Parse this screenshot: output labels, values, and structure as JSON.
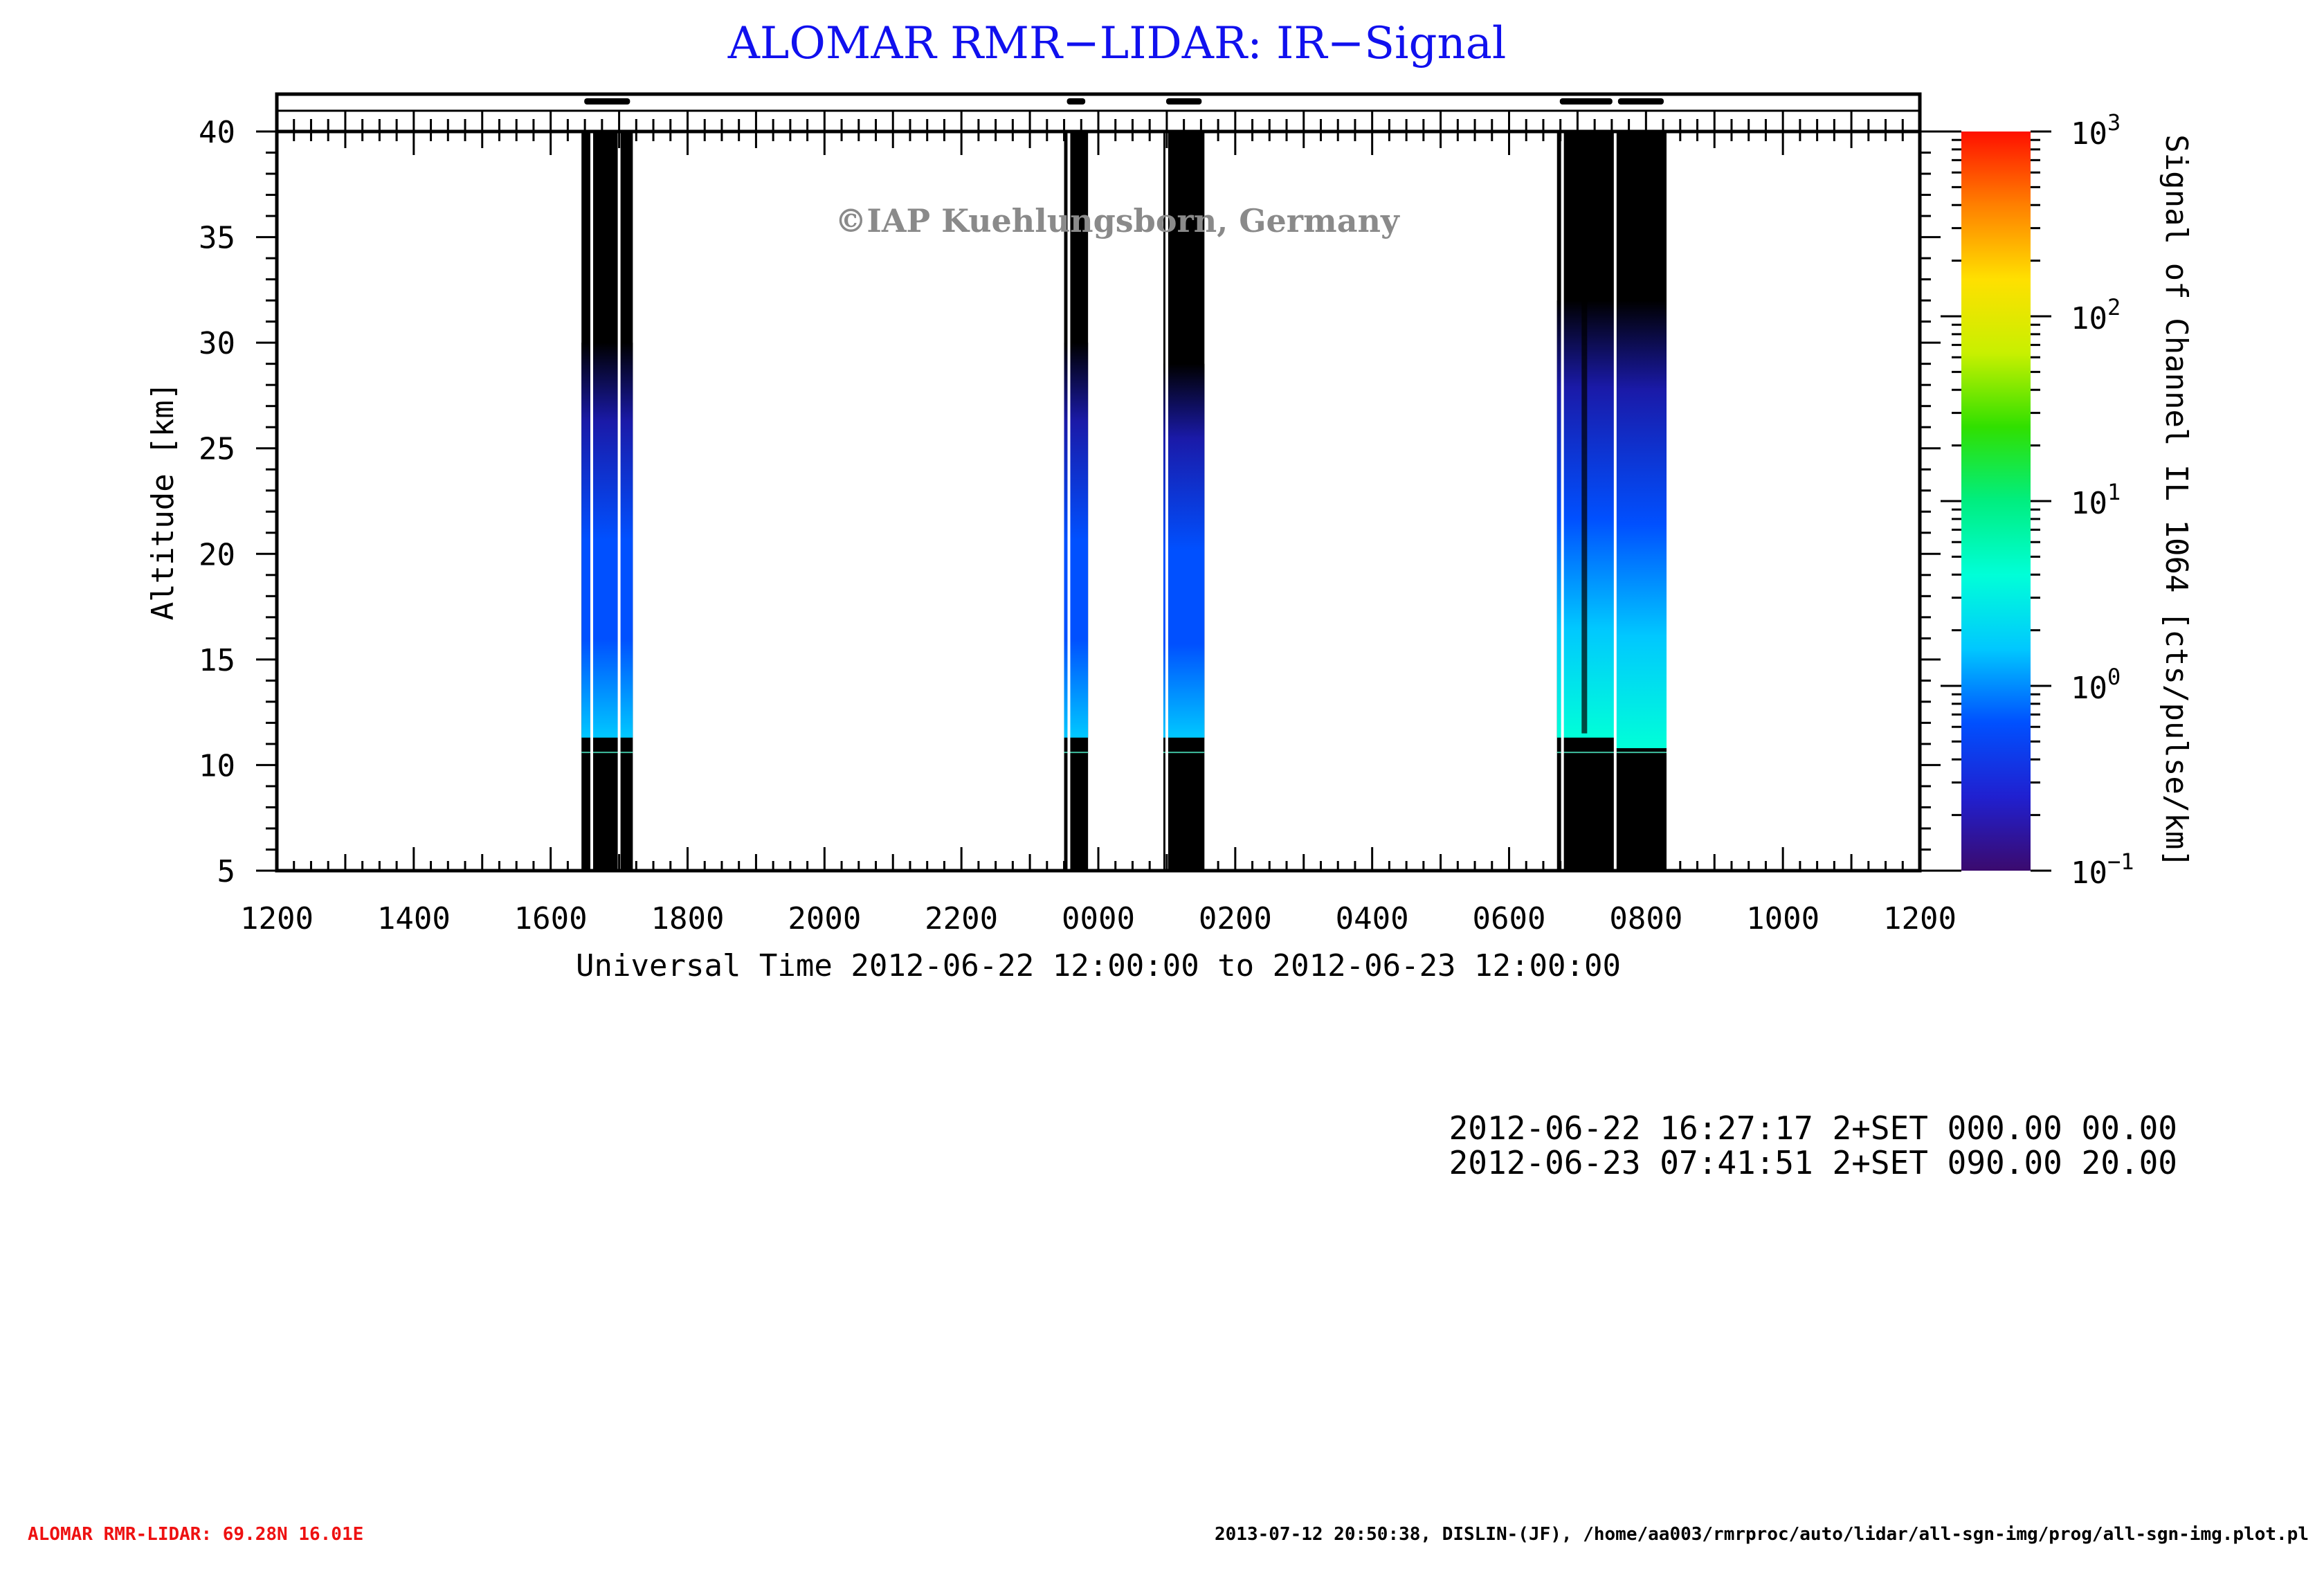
{
  "title": "ALOMAR RMR−LIDAR: IR−Signal",
  "copyright": "©IAP Kuehlungsborn, Germany",
  "colors": {
    "title": "#1010ee",
    "copyright": "#8a8a8a",
    "footer_left": "#ee1111",
    "axis": "#000000",
    "background": "#ffffff"
  },
  "chart_data": {
    "type": "heatmap",
    "title": "ALOMAR RMR−LIDAR: IR−Signal",
    "xlabel": "Universal Time 2012-06-22 12:00:00 to 2012-06-23 12:00:00",
    "ylabel": "Altitude [km]",
    "x_unit": "hours since 2012-06-22 12:00 UT",
    "xlim": [
      0,
      24
    ],
    "ylim": [
      5,
      40
    ],
    "x_ticks": [
      0,
      2,
      4,
      6,
      8,
      10,
      12,
      14,
      16,
      18,
      20,
      22,
      24
    ],
    "x_tick_labels": [
      "1200",
      "1400",
      "1600",
      "1800",
      "2000",
      "2200",
      "0000",
      "0200",
      "0400",
      "0600",
      "0800",
      "1000",
      "1200"
    ],
    "y_ticks": [
      5,
      10,
      15,
      20,
      25,
      30,
      35,
      40
    ],
    "y_tick_labels": [
      "5",
      "10",
      "15",
      "20",
      "25",
      "30",
      "35",
      "40"
    ],
    "colorbar": {
      "label": "Signal of Channel IL 1064 [cts/pulse/km]",
      "scale": "log",
      "range": [
        0.1,
        1000
      ],
      "tick_values": [
        0.1,
        1,
        10,
        100,
        1000
      ],
      "tick_bases": [
        "10",
        "10",
        "10",
        "10",
        "10"
      ],
      "tick_exponents": [
        "−1",
        "0",
        "1",
        "2",
        "3"
      ]
    },
    "measurement_periods": [
      {
        "start": 4.45,
        "end": 5.2,
        "signal_base_km": 11.3,
        "signal_top_km": 30,
        "peak_signal": 2
      },
      {
        "start": 11.5,
        "end": 11.85,
        "signal_base_km": 11.3,
        "signal_top_km": 30,
        "peak_signal": 2
      },
      {
        "start": 12.95,
        "end": 13.55,
        "signal_base_km": 11.3,
        "signal_top_km": 29,
        "peak_signal": 2
      },
      {
        "start": 18.7,
        "end": 19.55,
        "signal_base_km": 11.3,
        "signal_top_km": 32,
        "peak_signal": 4
      },
      {
        "start": 19.55,
        "end": 20.3,
        "signal_base_km": 10.8,
        "signal_top_km": 32,
        "peak_signal": 4
      }
    ],
    "gaps": [
      {
        "at": 4.6
      },
      {
        "at": 5.0
      },
      {
        "at": 11.57
      },
      {
        "at": 13.0
      },
      {
        "at": 18.78
      },
      {
        "at": 19.55
      }
    ],
    "tropopause_line_km": 10.6,
    "interruption_km_markers": [
      {
        "start": 18.95,
        "end": 19.25,
        "alt_top": 40,
        "alt_bottom": 11.5
      }
    ]
  },
  "info_lines": [
    "2012-06-22 16:27:17 2+SET 000.00 00.00",
    "2012-06-23 07:41:51 2+SET 090.00 20.00"
  ],
  "footer": {
    "left": "ALOMAR RMR-LIDAR: 69.28N 16.01E",
    "right": "2013-07-12 20:50:38, DISLIN-(JF), /home/aa003/rmrproc/auto/lidar/all-sgn-img/prog/all-sgn-img.plot.pl"
  }
}
